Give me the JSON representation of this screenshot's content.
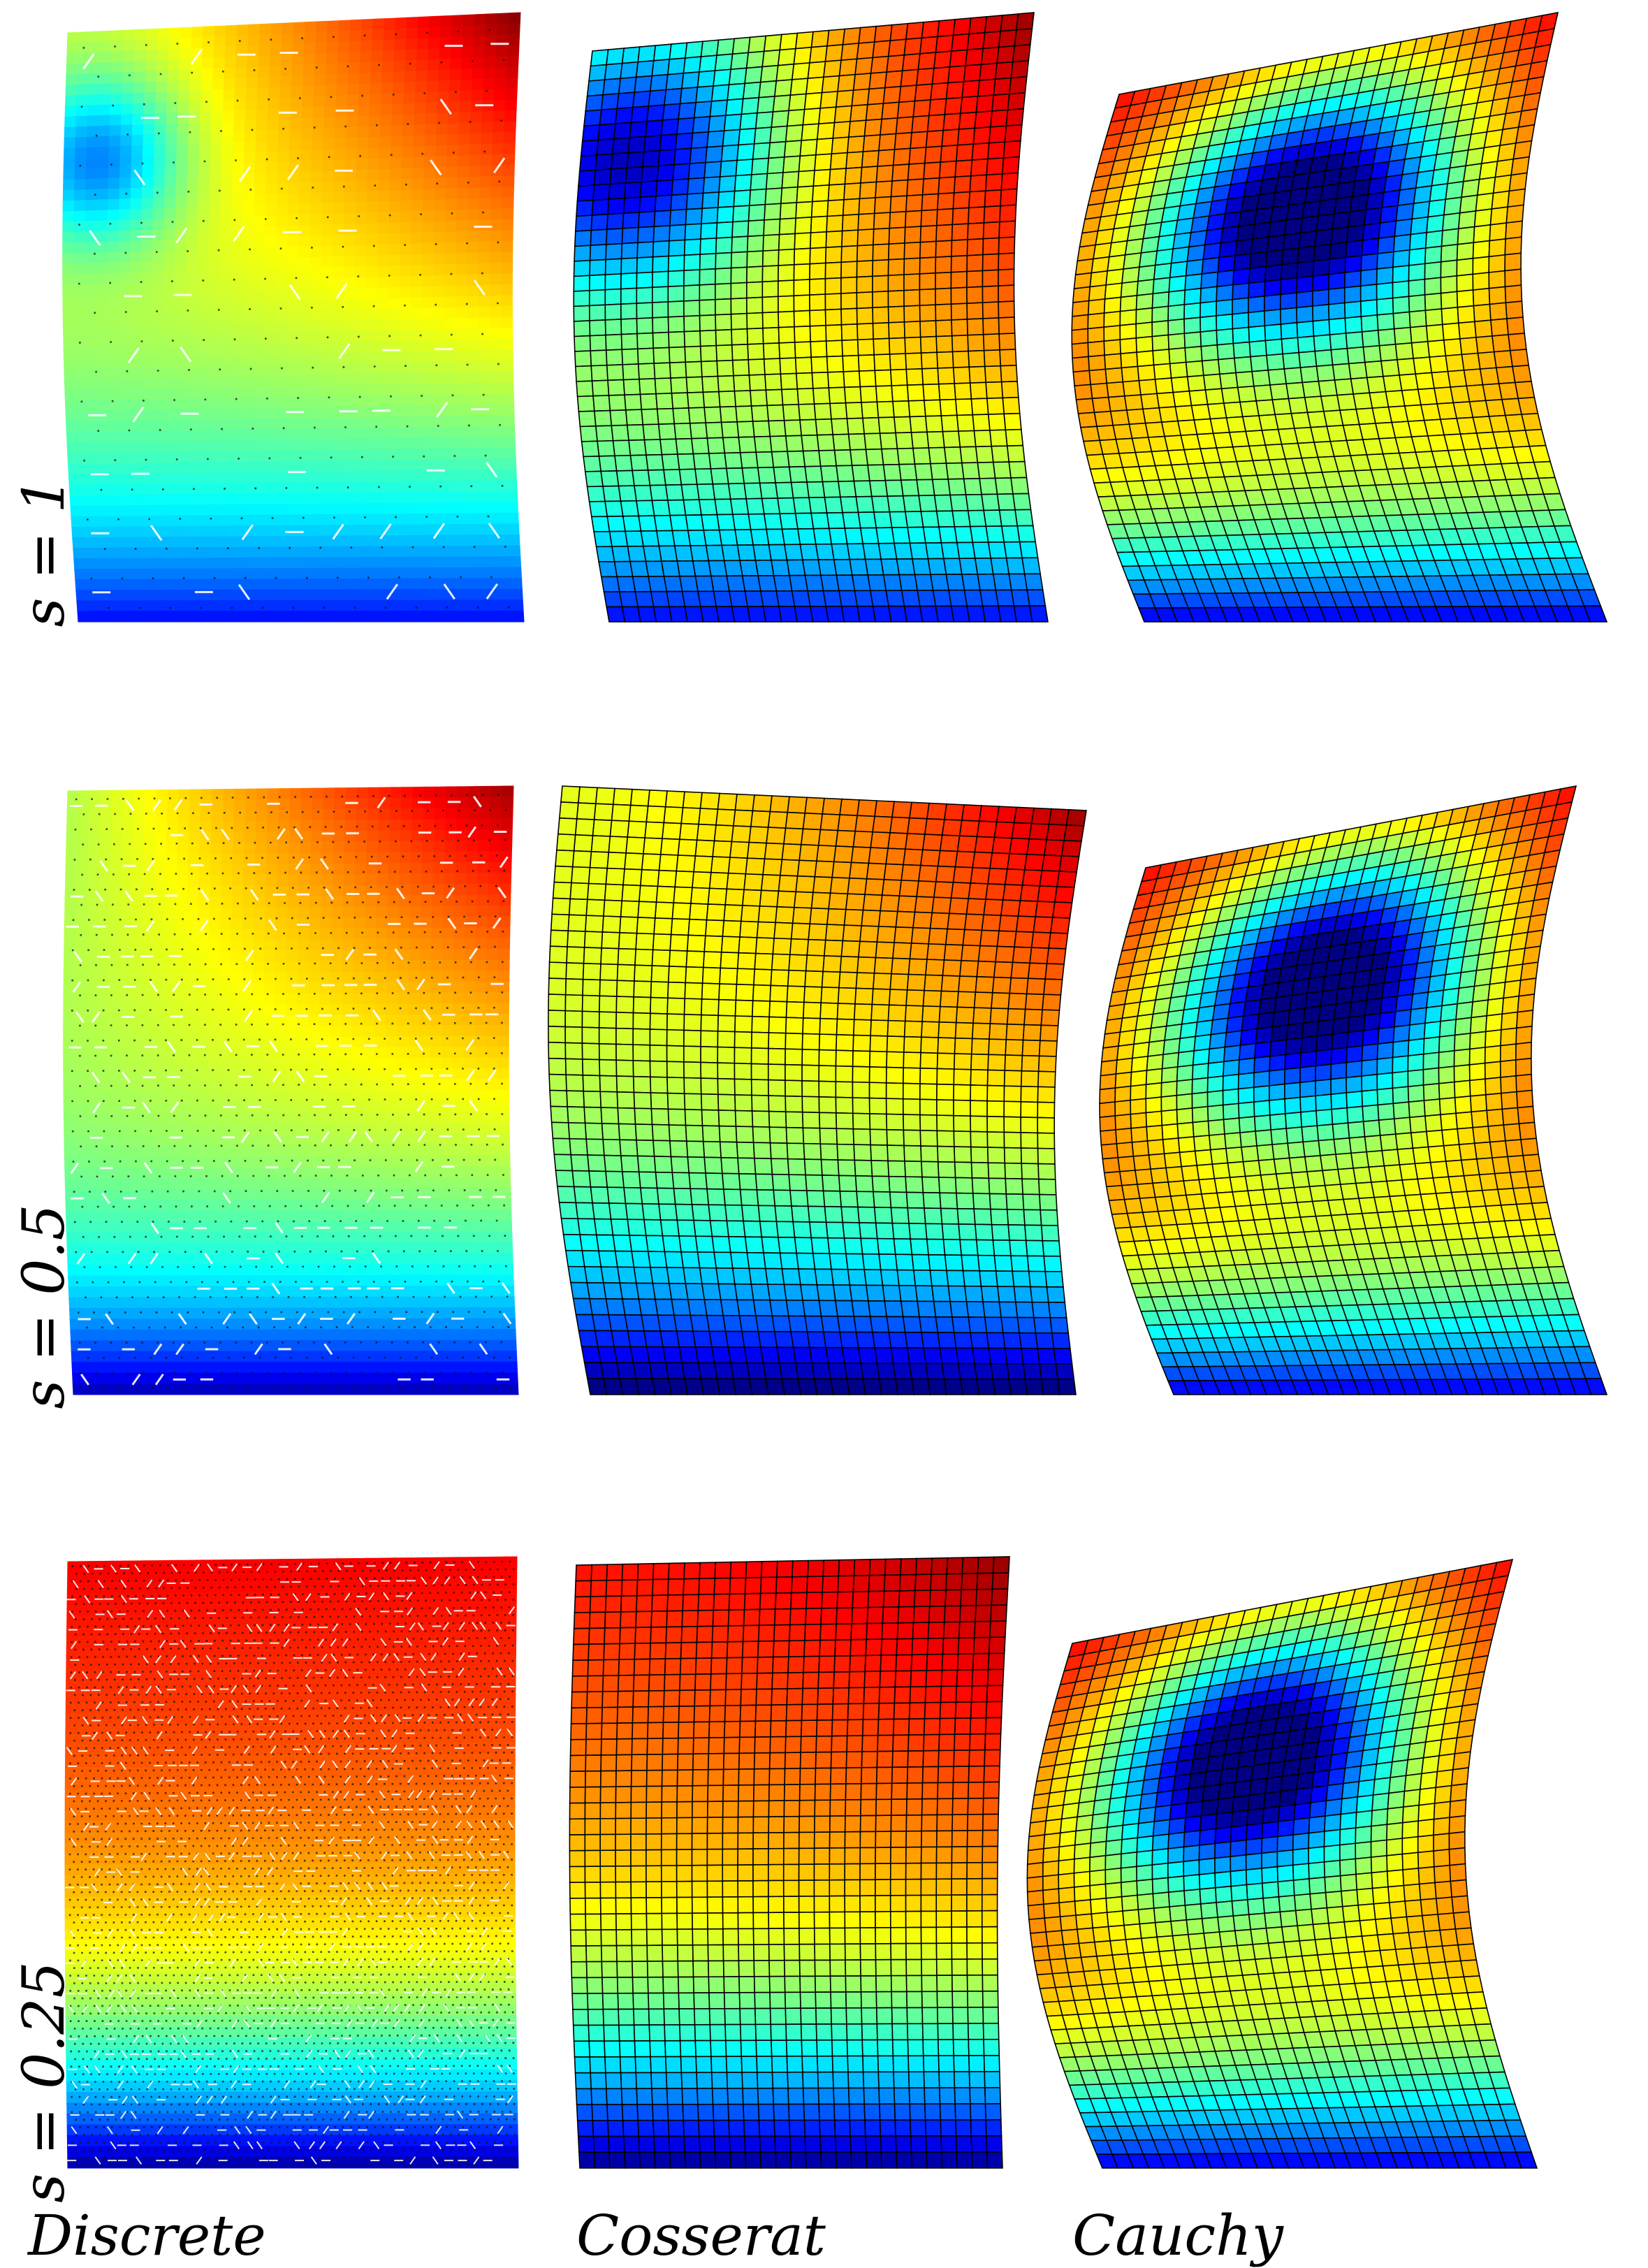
{
  "columns": [
    "Discrete",
    "Cosserat",
    "Cauchy"
  ],
  "rows": [
    {
      "label": "s = 1"
    },
    {
      "label": "s = 0.5"
    },
    {
      "label": "s = 0.25"
    }
  ],
  "colormap": [
    "#00008f",
    "#0000ff",
    "#00ffff",
    "#80ff80",
    "#ffff00",
    "#ff8000",
    "#ff0000",
    "#800000"
  ]
}
